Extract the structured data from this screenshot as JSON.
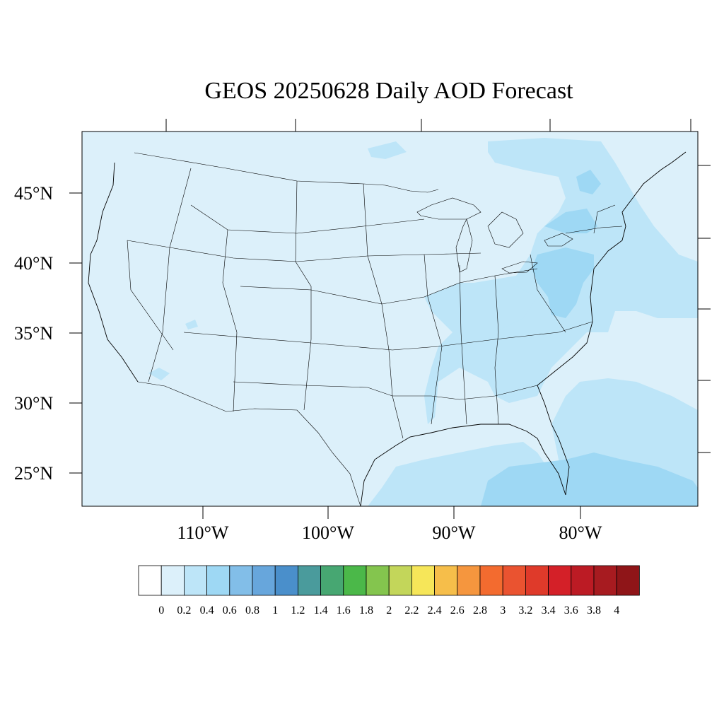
{
  "title": "GEOS 20250628 Daily AOD Forecast",
  "map": {
    "projection": "cylindrical-equidistant",
    "lon_range": [
      -119,
      -70
    ],
    "lat_range": [
      22.6,
      49.3
    ],
    "background_color": "#dcf0fa",
    "boundary_color": "#000000"
  },
  "lat_labels": [
    "45°N",
    "40°N",
    "35°N",
    "30°N",
    "25°N"
  ],
  "lon_labels": [
    "110°W",
    "100°W",
    "90°W",
    "80°W"
  ],
  "colorbar": {
    "levels": [
      "0",
      "0.2",
      "0.4",
      "0.6",
      "0.8",
      "1",
      "1.2",
      "1.4",
      "1.6",
      "1.8",
      "2",
      "2.2",
      "2.4",
      "2.6",
      "2.8",
      "3",
      "3.2",
      "3.4",
      "3.6",
      "3.8",
      "4"
    ],
    "colors": [
      "#ffffff",
      "#dcf0fa",
      "#bde5f8",
      "#9ed8f4",
      "#82bee8",
      "#67a6dc",
      "#4a8fcb",
      "#4a9b9c",
      "#47a772",
      "#4bb849",
      "#84c54e",
      "#c3d65a",
      "#f6e659",
      "#f6be4a",
      "#f5963e",
      "#f36b2f",
      "#ea5330",
      "#df3a2a",
      "#d42028",
      "#bc1b24",
      "#a71b20",
      "#8f1518"
    ]
  },
  "aod_fields": [
    {
      "level": "0.2-0.4",
      "region": "Northeast / Mid-Atlantic haze"
    },
    {
      "level": "0.2-0.4",
      "region": "Ohio and Tennessee valleys"
    },
    {
      "level": "0.2-0.4",
      "region": "Gulf of Mexico"
    },
    {
      "level": "0.2-0.4",
      "region": "Western Atlantic"
    },
    {
      "level": "0.4-0.6",
      "region": "Pennsylvania / Virginia / New York"
    },
    {
      "level": "0.4-0.6",
      "region": "Florida Straits / Bahamas"
    }
  ]
}
